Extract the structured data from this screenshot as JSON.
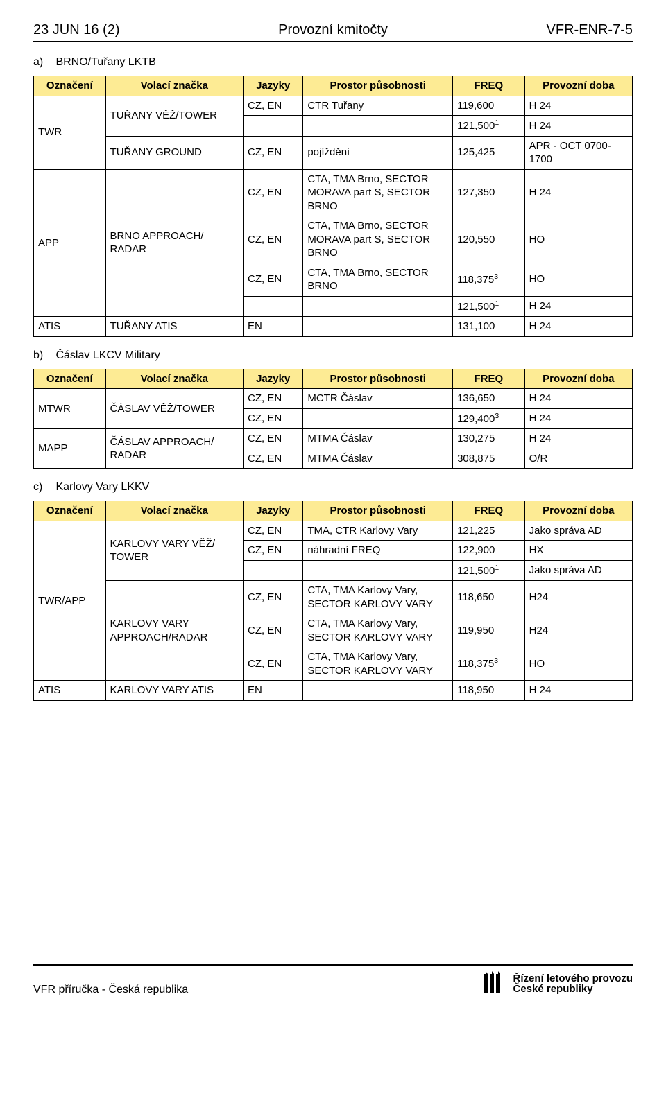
{
  "header": {
    "left": "23 JUN 16 (2)",
    "center": "Provozní kmitočty",
    "right": "VFR-ENR-7-5"
  },
  "colors": {
    "header_bg": "#fdeb94",
    "border": "#000000",
    "text": "#000000",
    "page_bg": "#ffffff"
  },
  "columns": {
    "oznaceni": "Označení",
    "volaci": "Volací značka",
    "jazyky": "Jazyky",
    "prostor": "Prostor působnosti",
    "freq": "FREQ",
    "doba": "Provozní doba"
  },
  "section_a": {
    "letter": "a)",
    "title": "BRNO/Tuřany LKTB",
    "rows": {
      "twr": "TWR",
      "twr_vz1": "TUŘANY VĚŽ/TOWER",
      "twr_r1": {
        "jaz": "CZ, EN",
        "pros": "CTR Tuřany",
        "freq": "119,600",
        "doba": "H 24"
      },
      "twr_r2": {
        "jaz": "",
        "pros": "",
        "freq_html": "121,500<sup>1</sup>",
        "doba": "H 24"
      },
      "twr_vz2": "TUŘANY GROUND",
      "twr_r3": {
        "jaz": "CZ, EN",
        "pros": "pojíždění",
        "freq": "125,425",
        "doba": "APR - OCT 0700-1700"
      },
      "app": "APP",
      "app_vz": "BRNO APPROACH/ RADAR",
      "app_r1": {
        "jaz": "CZ, EN",
        "pros": "CTA, TMA Brno, SECTOR MORAVA part S, SECTOR BRNO",
        "freq": "127,350",
        "doba": "H 24"
      },
      "app_r2": {
        "jaz": "CZ, EN",
        "pros": "CTA, TMA Brno, SECTOR MORAVA part S, SECTOR BRNO",
        "freq": "120,550",
        "doba": "HO"
      },
      "app_r3": {
        "jaz": "CZ, EN",
        "pros": "CTA, TMA Brno, SECTOR BRNO",
        "freq_html": "118,375<sup>3</sup>",
        "doba": "HO"
      },
      "app_r4": {
        "jaz": "",
        "pros": "",
        "freq_html": "121,500<sup>1</sup>",
        "doba": "H 24"
      },
      "atis": "ATIS",
      "atis_vz": "TUŘANY ATIS",
      "atis_r": {
        "jaz": "EN",
        "pros": "",
        "freq": "131,100",
        "doba": "H 24"
      }
    }
  },
  "section_b": {
    "letter": "b)",
    "title": "Čáslav LKCV Military",
    "rows": {
      "mtwr": "MTWR",
      "mtwr_vz": "ČÁSLAV VĚŽ/TOWER",
      "mtwr_r1": {
        "jaz": "CZ, EN",
        "pros": "MCTR Čáslav",
        "freq": "136,650",
        "doba": "H 24"
      },
      "mtwr_r2": {
        "jaz": "CZ, EN",
        "pros": "",
        "freq_html": "129,400<sup>3</sup>",
        "doba": "H 24"
      },
      "mapp": "MAPP",
      "mapp_vz": "ČÁSLAV APPROACH/ RADAR",
      "mapp_r1": {
        "jaz": "CZ, EN",
        "pros": "MTMA Čáslav",
        "freq": "130,275",
        "doba": "H 24"
      },
      "mapp_r2": {
        "jaz": "CZ, EN",
        "pros": "MTMA Čáslav",
        "freq": "308,875",
        "doba": "O/R"
      }
    }
  },
  "section_c": {
    "letter": "c)",
    "title": "Karlovy Vary LKKV",
    "rows": {
      "twrapp": "TWR/APP",
      "vz1": "KARLOVY VARY VĚŽ/ TOWER",
      "r1": {
        "jaz": "CZ, EN",
        "pros": "TMA, CTR Karlovy Vary",
        "freq": "121,225",
        "doba": "Jako správa AD"
      },
      "r2": {
        "jaz": "CZ, EN",
        "pros": "náhradní FREQ",
        "freq": "122,900",
        "doba": "HX"
      },
      "r3": {
        "jaz": "",
        "pros": "",
        "freq_html": "121,500<sup>1</sup>",
        "doba": "Jako správa AD"
      },
      "vz2": "KARLOVY VARY APPROACH/RADAR",
      "r4": {
        "jaz": "CZ, EN",
        "pros": "CTA, TMA Karlovy Vary, SECTOR KARLOVY VARY",
        "freq": "118,650",
        "doba": "H24"
      },
      "r5": {
        "jaz": "CZ, EN",
        "pros": "CTA, TMA Karlovy Vary, SECTOR KARLOVY VARY",
        "freq": "119,950",
        "doba": "H24"
      },
      "r6": {
        "jaz": "CZ, EN",
        "pros": "CTA, TMA Karlovy Vary, SECTOR KARLOVY VARY",
        "freq_html": "118,375<sup>3</sup>",
        "doba": "HO"
      },
      "atis": "ATIS",
      "atis_vz": "KARLOVY VARY ATIS",
      "atis_r": {
        "jaz": "EN",
        "pros": "",
        "freq": "118,950",
        "doba": "H 24"
      }
    }
  },
  "footer": {
    "left": "VFR příručka - Česká republika",
    "right_line1": "Řízení letového provozu",
    "right_line2": "České republiky"
  }
}
